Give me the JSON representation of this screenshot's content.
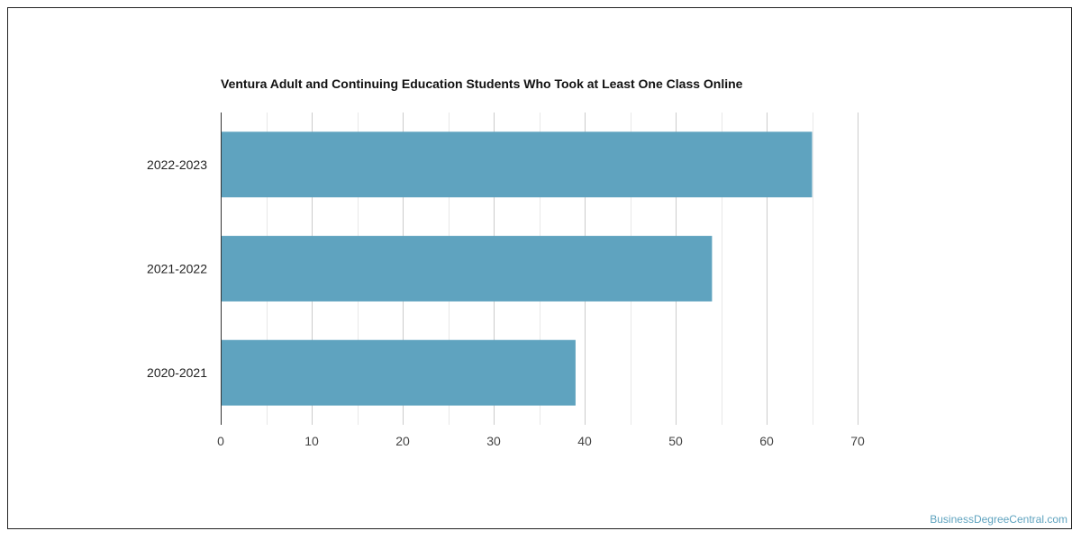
{
  "colors": {
    "bar": "#5fa3bf",
    "grid_major": "#cccccc",
    "grid_minor": "#e8e8e8",
    "axis": "#333333",
    "tick_text": "#444444",
    "watermark": "#5fa3bf"
  },
  "watermark": "BusinessDegreeCentral.com",
  "chart_data": {
    "type": "bar",
    "orientation": "horizontal",
    "title": "Ventura Adult and Continuing Education Students Who Took at Least One Class Online",
    "categories": [
      "2022-2023",
      "2021-2022",
      "2020-2021"
    ],
    "values": [
      65,
      54,
      39
    ],
    "xlim": [
      0,
      70
    ],
    "xticks": [
      0,
      10,
      20,
      30,
      40,
      50,
      60,
      70
    ],
    "grid": true,
    "xlabel": "",
    "ylabel": ""
  }
}
